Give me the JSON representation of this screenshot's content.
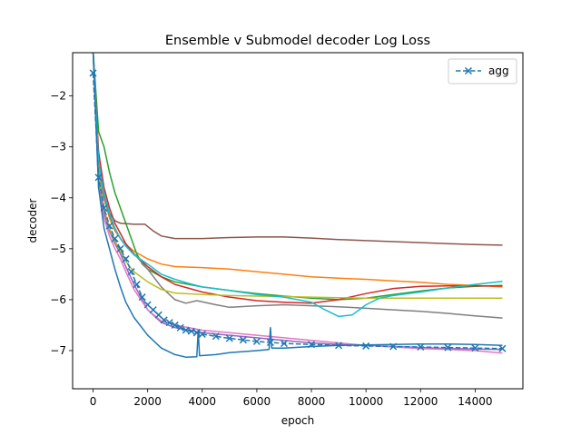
{
  "chart_data": {
    "type": "line",
    "title": "Ensemble v Submodel decoder Log Loss",
    "xlabel": "epoch",
    "ylabel": "decoder",
    "xlim": [
      -750,
      15750
    ],
    "ylim": [
      -7.75,
      -1.15
    ],
    "xticks": [
      0,
      2000,
      4000,
      6000,
      8000,
      10000,
      12000,
      14000
    ],
    "xtick_labels": [
      "0",
      "2000",
      "4000",
      "6000",
      "8000",
      "10000",
      "12000",
      "14000"
    ],
    "yticks": [
      -2,
      -3,
      -4,
      -5,
      -6,
      -7
    ],
    "ytick_labels": [
      "−2",
      "−3",
      "−4",
      "−5",
      "−6",
      "−7"
    ],
    "grid": false,
    "legend": {
      "position": "top-right",
      "entries": [
        "agg"
      ]
    },
    "series": [
      {
        "name": "agg",
        "color": "#1f77b4",
        "style": "dashed",
        "marker": "x",
        "points": [
          [
            0,
            -1.55
          ],
          [
            200,
            -3.6
          ],
          [
            400,
            -4.2
          ],
          [
            600,
            -4.55
          ],
          [
            800,
            -4.8
          ],
          [
            1000,
            -5.0
          ],
          [
            1200,
            -5.2
          ],
          [
            1400,
            -5.45
          ],
          [
            1600,
            -5.7
          ],
          [
            1800,
            -5.95
          ],
          [
            2000,
            -6.1
          ],
          [
            2200,
            -6.2
          ],
          [
            2400,
            -6.3
          ],
          [
            2600,
            -6.4
          ],
          [
            2800,
            -6.45
          ],
          [
            3000,
            -6.5
          ],
          [
            3200,
            -6.55
          ],
          [
            3400,
            -6.6
          ],
          [
            3600,
            -6.62
          ],
          [
            3800,
            -6.65
          ],
          [
            4000,
            -6.68
          ],
          [
            4500,
            -6.72
          ],
          [
            5000,
            -6.76
          ],
          [
            5500,
            -6.79
          ],
          [
            6000,
            -6.82
          ],
          [
            6500,
            -6.84
          ],
          [
            7000,
            -6.86
          ],
          [
            8000,
            -6.88
          ],
          [
            9000,
            -6.9
          ],
          [
            10000,
            -6.91
          ],
          [
            11000,
            -6.92
          ],
          [
            12000,
            -6.93
          ],
          [
            13000,
            -6.94
          ],
          [
            14000,
            -6.95
          ],
          [
            15000,
            -6.96
          ]
        ]
      },
      {
        "color": "#ff7f0e",
        "points": [
          [
            0,
            -1.1
          ],
          [
            200,
            -3.3
          ],
          [
            400,
            -4.0
          ],
          [
            600,
            -4.4
          ],
          [
            800,
            -4.65
          ],
          [
            1000,
            -4.8
          ],
          [
            1200,
            -4.92
          ],
          [
            1500,
            -5.05
          ],
          [
            2000,
            -5.2
          ],
          [
            2500,
            -5.3
          ],
          [
            3000,
            -5.35
          ],
          [
            4000,
            -5.37
          ],
          [
            5000,
            -5.4
          ],
          [
            6000,
            -5.45
          ],
          [
            7000,
            -5.5
          ],
          [
            8000,
            -5.55
          ],
          [
            9000,
            -5.58
          ],
          [
            10000,
            -5.6
          ],
          [
            11000,
            -5.63
          ],
          [
            12000,
            -5.66
          ],
          [
            13000,
            -5.7
          ],
          [
            14000,
            -5.72
          ],
          [
            15000,
            -5.75
          ]
        ]
      },
      {
        "color": "#2ca02c",
        "points": [
          [
            0,
            -1.1
          ],
          [
            200,
            -2.7
          ],
          [
            400,
            -3.0
          ],
          [
            600,
            -3.5
          ],
          [
            800,
            -3.9
          ],
          [
            1000,
            -4.2
          ],
          [
            1200,
            -4.5
          ],
          [
            1400,
            -4.8
          ],
          [
            1600,
            -5.1
          ],
          [
            1800,
            -5.3
          ],
          [
            2000,
            -5.4
          ],
          [
            2500,
            -5.55
          ],
          [
            3000,
            -5.65
          ],
          [
            4000,
            -5.75
          ],
          [
            5000,
            -5.82
          ],
          [
            6000,
            -5.88
          ],
          [
            7000,
            -5.93
          ],
          [
            8000,
            -5.97
          ],
          [
            9000,
            -6.0
          ],
          [
            10000,
            -5.97
          ],
          [
            11000,
            -5.9
          ],
          [
            12000,
            -5.83
          ],
          [
            13000,
            -5.77
          ],
          [
            14000,
            -5.74
          ],
          [
            15000,
            -5.72
          ]
        ]
      },
      {
        "color": "#d62728",
        "points": [
          [
            0,
            -1.1
          ],
          [
            200,
            -3.1
          ],
          [
            400,
            -3.8
          ],
          [
            600,
            -4.2
          ],
          [
            800,
            -4.5
          ],
          [
            1000,
            -4.7
          ],
          [
            1200,
            -4.9
          ],
          [
            1500,
            -5.1
          ],
          [
            2000,
            -5.35
          ],
          [
            2500,
            -5.55
          ],
          [
            3000,
            -5.7
          ],
          [
            4000,
            -5.85
          ],
          [
            5000,
            -5.95
          ],
          [
            6000,
            -6.02
          ],
          [
            7000,
            -6.05
          ],
          [
            8000,
            -6.07
          ],
          [
            9000,
            -6.0
          ],
          [
            10000,
            -5.88
          ],
          [
            11000,
            -5.78
          ],
          [
            12000,
            -5.74
          ],
          [
            13000,
            -5.73
          ],
          [
            14000,
            -5.73
          ],
          [
            15000,
            -5.73
          ]
        ]
      },
      {
        "color": "#9467bd",
        "points": [
          [
            0,
            -1.1
          ],
          [
            200,
            -3.6
          ],
          [
            400,
            -4.3
          ],
          [
            600,
            -4.65
          ],
          [
            800,
            -4.9
          ],
          [
            1000,
            -5.1
          ],
          [
            1200,
            -5.35
          ],
          [
            1500,
            -5.7
          ],
          [
            2000,
            -6.2
          ],
          [
            2500,
            -6.45
          ],
          [
            3000,
            -6.55
          ],
          [
            3500,
            -6.6
          ],
          [
            4000,
            -6.65
          ],
          [
            5000,
            -6.7
          ],
          [
            6000,
            -6.75
          ],
          [
            7000,
            -6.8
          ],
          [
            8000,
            -6.85
          ],
          [
            9000,
            -6.88
          ],
          [
            10000,
            -6.9
          ],
          [
            11000,
            -6.92
          ],
          [
            12000,
            -6.94
          ],
          [
            13000,
            -6.96
          ],
          [
            14000,
            -6.97
          ],
          [
            15000,
            -6.98
          ]
        ]
      },
      {
        "color": "#8c564b",
        "points": [
          [
            0,
            -1.1
          ],
          [
            200,
            -3.5
          ],
          [
            400,
            -4.0
          ],
          [
            600,
            -4.3
          ],
          [
            800,
            -4.45
          ],
          [
            1000,
            -4.5
          ],
          [
            1500,
            -4.52
          ],
          [
            1900,
            -4.52
          ],
          [
            2200,
            -4.65
          ],
          [
            2500,
            -4.75
          ],
          [
            3000,
            -4.8
          ],
          [
            4000,
            -4.8
          ],
          [
            5000,
            -4.78
          ],
          [
            6000,
            -4.77
          ],
          [
            7000,
            -4.77
          ],
          [
            8000,
            -4.79
          ],
          [
            9000,
            -4.82
          ],
          [
            10000,
            -4.84
          ],
          [
            11000,
            -4.86
          ],
          [
            12000,
            -4.88
          ],
          [
            13000,
            -4.9
          ],
          [
            14000,
            -4.92
          ],
          [
            15000,
            -4.93
          ]
        ]
      },
      {
        "color": "#e377c2",
        "points": [
          [
            0,
            -1.1
          ],
          [
            200,
            -3.8
          ],
          [
            400,
            -4.4
          ],
          [
            600,
            -4.75
          ],
          [
            800,
            -5.0
          ],
          [
            1000,
            -5.2
          ],
          [
            1200,
            -5.45
          ],
          [
            1500,
            -5.8
          ],
          [
            2000,
            -6.2
          ],
          [
            2500,
            -6.42
          ],
          [
            3000,
            -6.5
          ],
          [
            4000,
            -6.6
          ],
          [
            5000,
            -6.65
          ],
          [
            6000,
            -6.7
          ],
          [
            7000,
            -6.75
          ],
          [
            8000,
            -6.8
          ],
          [
            9000,
            -6.85
          ],
          [
            10000,
            -6.9
          ],
          [
            11000,
            -6.93
          ],
          [
            12000,
            -6.96
          ],
          [
            13000,
            -6.98
          ],
          [
            14000,
            -7.0
          ],
          [
            15000,
            -7.05
          ]
        ]
      },
      {
        "color": "#7f7f7f",
        "points": [
          [
            0,
            -1.1
          ],
          [
            200,
            -3.4
          ],
          [
            400,
            -4.0
          ],
          [
            600,
            -4.35
          ],
          [
            800,
            -4.6
          ],
          [
            1000,
            -4.8
          ],
          [
            1200,
            -4.95
          ],
          [
            1500,
            -5.1
          ],
          [
            2000,
            -5.4
          ],
          [
            2500,
            -5.75
          ],
          [
            3000,
            -6.0
          ],
          [
            3400,
            -6.07
          ],
          [
            3800,
            -6.02
          ],
          [
            4500,
            -6.1
          ],
          [
            5000,
            -6.15
          ],
          [
            6000,
            -6.12
          ],
          [
            7000,
            -6.1
          ],
          [
            8000,
            -6.12
          ],
          [
            9000,
            -6.14
          ],
          [
            10000,
            -6.17
          ],
          [
            11000,
            -6.2
          ],
          [
            12000,
            -6.23
          ],
          [
            13000,
            -6.27
          ],
          [
            14000,
            -6.32
          ],
          [
            15000,
            -6.36
          ]
        ]
      },
      {
        "color": "#bcbd22",
        "points": [
          [
            0,
            -1.1
          ],
          [
            200,
            -3.5
          ],
          [
            400,
            -4.2
          ],
          [
            600,
            -4.6
          ],
          [
            800,
            -4.85
          ],
          [
            1000,
            -5.05
          ],
          [
            1200,
            -5.25
          ],
          [
            1500,
            -5.45
          ],
          [
            2000,
            -5.65
          ],
          [
            2500,
            -5.8
          ],
          [
            3000,
            -5.87
          ],
          [
            4000,
            -5.9
          ],
          [
            5000,
            -5.92
          ],
          [
            6000,
            -5.93
          ],
          [
            7000,
            -5.94
          ],
          [
            8000,
            -5.95
          ],
          [
            9000,
            -5.96
          ],
          [
            10000,
            -5.97
          ],
          [
            11000,
            -5.97
          ],
          [
            12000,
            -5.97
          ],
          [
            13000,
            -5.97
          ],
          [
            14000,
            -5.97
          ],
          [
            15000,
            -5.97
          ]
        ]
      },
      {
        "color": "#17becf",
        "points": [
          [
            0,
            -1.1
          ],
          [
            200,
            -3.3
          ],
          [
            400,
            -3.9
          ],
          [
            600,
            -4.3
          ],
          [
            800,
            -4.6
          ],
          [
            1000,
            -4.8
          ],
          [
            1200,
            -4.95
          ],
          [
            1500,
            -5.12
          ],
          [
            2000,
            -5.3
          ],
          [
            2500,
            -5.5
          ],
          [
            3000,
            -5.6
          ],
          [
            3500,
            -5.68
          ],
          [
            4000,
            -5.75
          ],
          [
            5000,
            -5.82
          ],
          [
            6000,
            -5.9
          ],
          [
            7000,
            -5.95
          ],
          [
            8000,
            -6.05
          ],
          [
            8500,
            -6.2
          ],
          [
            9000,
            -6.33
          ],
          [
            9500,
            -6.3
          ],
          [
            10000,
            -6.1
          ],
          [
            10500,
            -5.97
          ],
          [
            11000,
            -5.92
          ],
          [
            12000,
            -5.85
          ],
          [
            13000,
            -5.77
          ],
          [
            14000,
            -5.7
          ],
          [
            15000,
            -5.64
          ]
        ]
      },
      {
        "color": "#1f77b4",
        "points": [
          [
            0,
            -1.1
          ],
          [
            200,
            -3.8
          ],
          [
            400,
            -4.6
          ],
          [
            600,
            -5.0
          ],
          [
            800,
            -5.4
          ],
          [
            1000,
            -5.75
          ],
          [
            1200,
            -6.05
          ],
          [
            1500,
            -6.35
          ],
          [
            2000,
            -6.7
          ],
          [
            2500,
            -6.95
          ],
          [
            3000,
            -7.08
          ],
          [
            3400,
            -7.13
          ],
          [
            3800,
            -7.12
          ],
          [
            3850,
            -6.6
          ],
          [
            3900,
            -7.1
          ],
          [
            4500,
            -7.08
          ],
          [
            5000,
            -7.04
          ],
          [
            6000,
            -7.0
          ],
          [
            6450,
            -6.98
          ],
          [
            6500,
            -6.55
          ],
          [
            6550,
            -6.95
          ],
          [
            7000,
            -6.95
          ],
          [
            8000,
            -6.92
          ],
          [
            9000,
            -6.9
          ],
          [
            10000,
            -6.89
          ],
          [
            11000,
            -6.88
          ],
          [
            12000,
            -6.87
          ],
          [
            13000,
            -6.87
          ],
          [
            14000,
            -6.88
          ],
          [
            15000,
            -6.9
          ]
        ]
      }
    ]
  }
}
